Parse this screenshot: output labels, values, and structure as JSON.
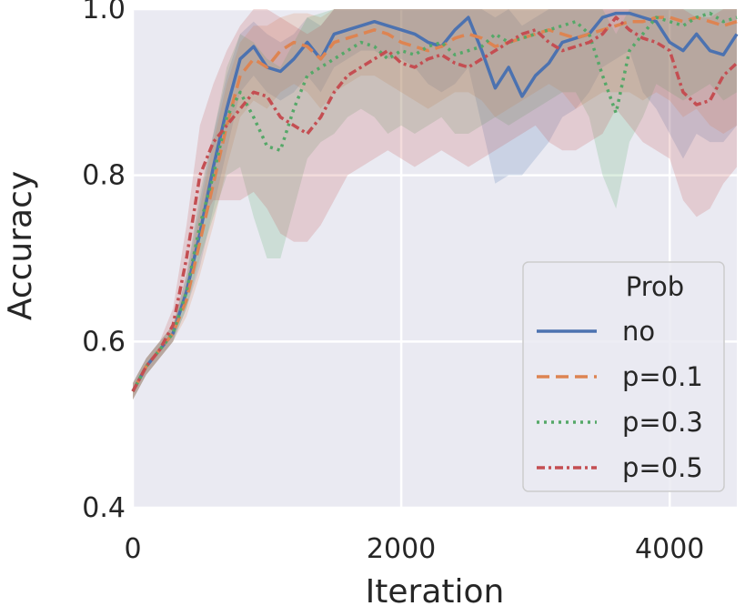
{
  "chart_data": {
    "type": "line",
    "xlabel": "Iteration",
    "ylabel": "Accuracy",
    "xlim": [
      0,
      4500
    ],
    "ylim": [
      0.4,
      1.0
    ],
    "xticks": [
      0,
      2000,
      4000
    ],
    "yticks": [
      0.4,
      0.6,
      0.8,
      1.0
    ],
    "xtick_labels": [
      "0",
      "2000",
      "4000"
    ],
    "ytick_labels": [
      "0.4",
      "0.6",
      "0.8",
      "1.0"
    ],
    "grid": true,
    "legend": {
      "title": "Prob",
      "position": "lower-right"
    },
    "x": [
      0,
      100,
      200,
      300,
      400,
      500,
      600,
      700,
      800,
      900,
      1000,
      1100,
      1200,
      1300,
      1400,
      1500,
      1600,
      1700,
      1800,
      1900,
      2000,
      2100,
      2200,
      2300,
      2400,
      2500,
      2600,
      2700,
      2800,
      2900,
      3000,
      3100,
      3200,
      3300,
      3400,
      3500,
      3600,
      3700,
      3800,
      3900,
      4000,
      4100,
      4200,
      4300,
      4400,
      4500
    ],
    "series": [
      {
        "name": "no",
        "color": "#4c72b0",
        "dash": "solid",
        "values": [
          0.54,
          0.57,
          0.59,
          0.61,
          0.66,
          0.73,
          0.81,
          0.88,
          0.94,
          0.955,
          0.93,
          0.925,
          0.94,
          0.96,
          0.94,
          0.97,
          0.975,
          0.98,
          0.985,
          0.98,
          0.975,
          0.97,
          0.96,
          0.955,
          0.975,
          0.99,
          0.95,
          0.905,
          0.93,
          0.895,
          0.92,
          0.935,
          0.96,
          0.965,
          0.97,
          0.99,
          0.995,
          0.995,
          0.99,
          0.985,
          0.96,
          0.95,
          0.97,
          0.95,
          0.945,
          0.97
        ],
        "lower": [
          0.53,
          0.56,
          0.58,
          0.6,
          0.64,
          0.69,
          0.76,
          0.83,
          0.9,
          0.92,
          0.9,
          0.89,
          0.9,
          0.92,
          0.9,
          0.93,
          0.94,
          0.95,
          0.95,
          0.94,
          0.94,
          0.93,
          0.91,
          0.9,
          0.91,
          0.93,
          0.86,
          0.79,
          0.8,
          0.8,
          0.82,
          0.84,
          0.87,
          0.88,
          0.9,
          0.93,
          0.94,
          0.95,
          0.9,
          0.88,
          0.85,
          0.82,
          0.85,
          0.84,
          0.84,
          0.86
        ],
        "upper": [
          0.55,
          0.58,
          0.6,
          0.62,
          0.68,
          0.77,
          0.85,
          0.92,
          0.97,
          0.985,
          0.97,
          0.96,
          0.97,
          0.99,
          0.98,
          1.0,
          1.0,
          1.0,
          1.0,
          1.0,
          1.0,
          1.0,
          1.0,
          1.0,
          1.0,
          1.0,
          1.0,
          0.99,
          1.0,
          0.98,
          0.99,
          1.0,
          1.0,
          1.0,
          1.0,
          1.0,
          1.0,
          1.0,
          1.0,
          1.0,
          1.0,
          1.0,
          1.0,
          1.0,
          1.0,
          1.0
        ]
      },
      {
        "name": "p=0.1",
        "color": "#dd8452",
        "dash": "14 7",
        "values": [
          0.54,
          0.57,
          0.59,
          0.61,
          0.65,
          0.72,
          0.79,
          0.86,
          0.92,
          0.94,
          0.93,
          0.95,
          0.96,
          0.955,
          0.94,
          0.96,
          0.965,
          0.97,
          0.975,
          0.97,
          0.96,
          0.955,
          0.95,
          0.955,
          0.965,
          0.97,
          0.965,
          0.955,
          0.96,
          0.965,
          0.97,
          0.975,
          0.97,
          0.965,
          0.97,
          0.975,
          0.98,
          0.985,
          0.985,
          0.99,
          0.99,
          0.985,
          0.99,
          0.985,
          0.98,
          0.985
        ],
        "lower": [
          0.53,
          0.56,
          0.58,
          0.6,
          0.63,
          0.68,
          0.74,
          0.81,
          0.87,
          0.89,
          0.88,
          0.9,
          0.91,
          0.9,
          0.88,
          0.9,
          0.91,
          0.92,
          0.92,
          0.91,
          0.9,
          0.89,
          0.88,
          0.89,
          0.9,
          0.9,
          0.89,
          0.87,
          0.88,
          0.89,
          0.9,
          0.91,
          0.9,
          0.88,
          0.89,
          0.9,
          0.9,
          0.9,
          0.89,
          0.9,
          0.89,
          0.87,
          0.88,
          0.86,
          0.85,
          0.86
        ],
        "upper": [
          0.55,
          0.58,
          0.6,
          0.62,
          0.67,
          0.76,
          0.84,
          0.91,
          0.96,
          0.98,
          0.98,
          0.99,
          0.995,
          0.995,
          0.99,
          1.0,
          1.0,
          1.0,
          1.0,
          1.0,
          1.0,
          1.0,
          1.0,
          1.0,
          1.0,
          1.0,
          1.0,
          1.0,
          1.0,
          1.0,
          1.0,
          1.0,
          1.0,
          1.0,
          1.0,
          1.0,
          1.0,
          1.0,
          1.0,
          1.0,
          1.0,
          1.0,
          1.0,
          1.0,
          1.0,
          1.0
        ]
      },
      {
        "name": "p=0.3",
        "color": "#55a868",
        "dash": "3 5",
        "values": [
          0.54,
          0.57,
          0.59,
          0.61,
          0.66,
          0.74,
          0.8,
          0.87,
          0.9,
          0.87,
          0.835,
          0.83,
          0.88,
          0.92,
          0.93,
          0.94,
          0.95,
          0.96,
          0.955,
          0.94,
          0.95,
          0.945,
          0.955,
          0.96,
          0.945,
          0.95,
          0.955,
          0.97,
          0.96,
          0.965,
          0.97,
          0.975,
          0.98,
          0.985,
          0.97,
          0.92,
          0.875,
          0.95,
          0.97,
          0.99,
          0.985,
          0.98,
          0.99,
          0.995,
          0.985,
          0.99
        ],
        "lower": [
          0.53,
          0.56,
          0.58,
          0.6,
          0.64,
          0.7,
          0.75,
          0.8,
          0.81,
          0.75,
          0.7,
          0.7,
          0.76,
          0.82,
          0.84,
          0.85,
          0.87,
          0.88,
          0.87,
          0.85,
          0.86,
          0.85,
          0.86,
          0.87,
          0.85,
          0.85,
          0.86,
          0.87,
          0.86,
          0.87,
          0.88,
          0.89,
          0.9,
          0.9,
          0.87,
          0.8,
          0.76,
          0.84,
          0.87,
          0.91,
          0.9,
          0.89,
          0.9,
          0.91,
          0.89,
          0.9
        ],
        "upper": [
          0.55,
          0.58,
          0.6,
          0.62,
          0.68,
          0.78,
          0.85,
          0.93,
          0.97,
          0.96,
          0.94,
          0.93,
          0.96,
          0.99,
          0.995,
          1.0,
          1.0,
          1.0,
          1.0,
          1.0,
          1.0,
          1.0,
          1.0,
          1.0,
          1.0,
          1.0,
          1.0,
          1.0,
          1.0,
          1.0,
          1.0,
          1.0,
          1.0,
          1.0,
          1.0,
          1.0,
          0.97,
          1.0,
          1.0,
          1.0,
          1.0,
          1.0,
          1.0,
          1.0,
          1.0,
          1.0
        ]
      },
      {
        "name": "p=0.5",
        "color": "#c44e52",
        "dash": "9 4 3 4",
        "values": [
          0.54,
          0.57,
          0.59,
          0.62,
          0.7,
          0.8,
          0.84,
          0.86,
          0.88,
          0.9,
          0.895,
          0.87,
          0.86,
          0.85,
          0.87,
          0.9,
          0.92,
          0.93,
          0.94,
          0.95,
          0.935,
          0.93,
          0.94,
          0.945,
          0.935,
          0.93,
          0.94,
          0.95,
          0.96,
          0.97,
          0.975,
          0.96,
          0.95,
          0.955,
          0.96,
          0.97,
          0.99,
          0.975,
          0.965,
          0.96,
          0.95,
          0.9,
          0.885,
          0.89,
          0.92,
          0.935
        ],
        "lower": [
          0.53,
          0.56,
          0.58,
          0.6,
          0.66,
          0.74,
          0.77,
          0.77,
          0.77,
          0.78,
          0.76,
          0.73,
          0.72,
          0.72,
          0.74,
          0.77,
          0.8,
          0.81,
          0.82,
          0.83,
          0.82,
          0.81,
          0.82,
          0.83,
          0.82,
          0.81,
          0.82,
          0.83,
          0.84,
          0.85,
          0.86,
          0.84,
          0.83,
          0.83,
          0.84,
          0.85,
          0.88,
          0.86,
          0.84,
          0.83,
          0.82,
          0.77,
          0.75,
          0.76,
          0.79,
          0.81
        ],
        "upper": [
          0.55,
          0.58,
          0.6,
          0.64,
          0.74,
          0.86,
          0.91,
          0.95,
          0.98,
          1.0,
          1.0,
          0.99,
          0.98,
          0.97,
          0.98,
          1.0,
          1.0,
          1.0,
          1.0,
          1.0,
          1.0,
          1.0,
          1.0,
          1.0,
          1.0,
          1.0,
          1.0,
          1.0,
          1.0,
          1.0,
          1.0,
          1.0,
          1.0,
          1.0,
          1.0,
          1.0,
          1.0,
          1.0,
          1.0,
          1.0,
          1.0,
          1.0,
          0.99,
          0.99,
          1.0,
          1.0
        ]
      }
    ]
  }
}
